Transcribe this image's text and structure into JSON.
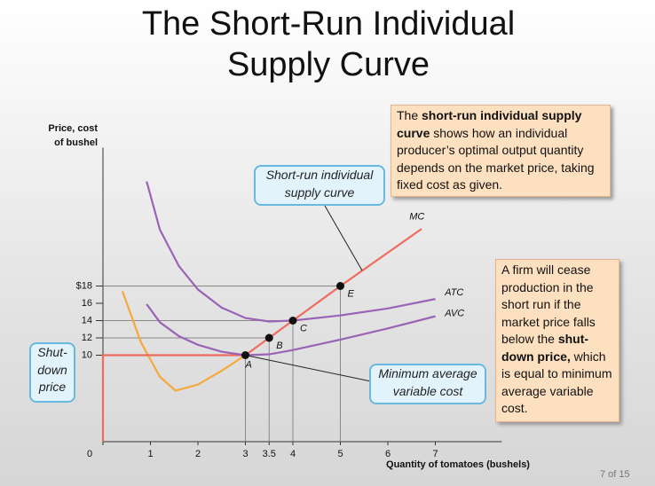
{
  "chart_data": {
    "type": "line",
    "title": "The Short-Run Individual Supply Curve",
    "y_label": "Price, cost of bushel",
    "x_label": "Quantity of tomatoes (bushels)",
    "xlim": [
      0,
      8.4
    ],
    "ylim": [
      0,
      34
    ],
    "xticks": [
      0,
      1,
      2,
      3,
      3.5,
      4,
      5,
      6,
      7
    ],
    "yticks": [
      {
        "value": 18,
        "label": "$18"
      },
      16,
      14,
      12,
      10
    ],
    "series": [
      {
        "name": "MC",
        "color": "#f5a93c",
        "x": [
          0.41,
          0.8,
          1.2,
          1.53,
          2,
          2.5,
          3
        ],
        "values": [
          17.4,
          11.5,
          7.5,
          5.9,
          6.6,
          8.2,
          10
        ]
      },
      {
        "name": "Short-run individual supply curve",
        "color": "#ef6b5e",
        "x": [
          0,
          0,
          3,
          3.5,
          4,
          5,
          6.71
        ],
        "values": [
          0,
          10,
          10,
          12,
          14,
          18,
          24.6
        ]
      },
      {
        "name": "ATC",
        "color": "#9b63b5",
        "x": [
          0.92,
          1.2,
          1.6,
          2,
          2.5,
          3,
          3.5,
          4,
          5,
          6,
          7
        ],
        "values": [
          30.1,
          24.5,
          20.3,
          17.6,
          15.5,
          14.3,
          13.9,
          14,
          14.6,
          15.4,
          16.5
        ]
      },
      {
        "name": "AVC",
        "color": "#9b63b5",
        "x": [
          0.92,
          1.2,
          1.6,
          2,
          2.5,
          3,
          3.5,
          4,
          5,
          6,
          7
        ],
        "values": [
          15.9,
          13.8,
          12.2,
          11.2,
          10.4,
          10,
          10.1,
          10.6,
          11.8,
          13.1,
          14.5
        ]
      }
    ],
    "points": [
      {
        "name": "A",
        "x": 3,
        "y": 10
      },
      {
        "name": "B",
        "x": 3.5,
        "y": 12
      },
      {
        "name": "C",
        "x": 4,
        "y": 14
      },
      {
        "name": "E",
        "x": 5,
        "y": 18
      }
    ],
    "shutdown_label": "Shut-down price",
    "min_avc_label": "Minimum average variable cost",
    "note_top": [
      {
        "text": "The ",
        "bold": false
      },
      {
        "text": "short-run individual supply curve",
        "bold": true
      },
      {
        "text": " shows how an individual producer’s optimal output quantity depends on the market price, taking fixed cost as given.",
        "bold": false
      }
    ],
    "note_right": [
      {
        "text": "A firm will cease production in the short run if the market price falls below the ",
        "bold": false
      },
      {
        "text": "shut-down price,",
        "bold": true
      },
      {
        "text": " which is equal to minimum average variable cost.",
        "bold": false
      }
    ],
    "page": "7 of 15"
  }
}
